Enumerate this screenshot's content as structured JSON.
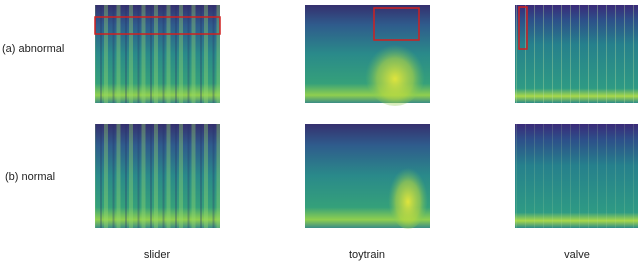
{
  "row_labels": [
    "(a) abnormal",
    "(b) normal"
  ],
  "column_labels": [
    "slider",
    "toytrain",
    "valve"
  ]
}
